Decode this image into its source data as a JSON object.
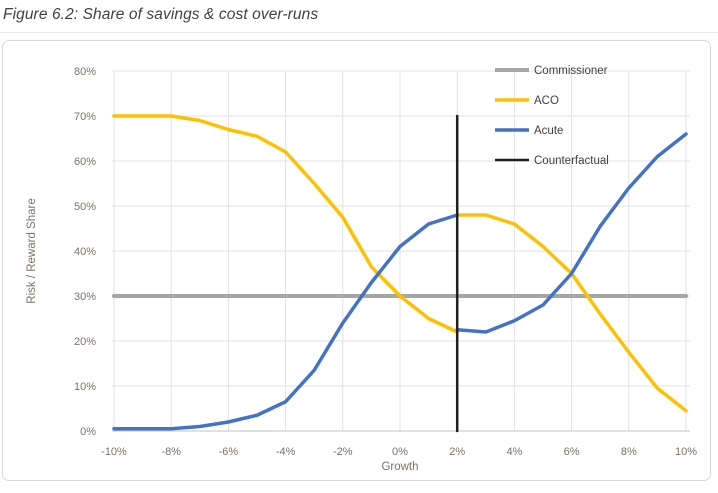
{
  "chart_data": {
    "type": "line",
    "title": "Figure 6.2: Share of savings & cost over-runs",
    "xlabel": "Growth",
    "ylabel": "Risk / Reward Share",
    "xlim": [
      -10,
      10
    ],
    "ylim": [
      0,
      80
    ],
    "x_tick_values": [
      -10,
      -8,
      -6,
      -4,
      -2,
      0,
      2,
      4,
      6,
      8,
      10
    ],
    "x_tick_labels": [
      "-10%",
      "-8%",
      "-6%",
      "-4%",
      "-2%",
      "0%",
      "2%",
      "4%",
      "6%",
      "8%",
      "10%"
    ],
    "y_tick_values": [
      0,
      10,
      20,
      30,
      40,
      50,
      60,
      70,
      80
    ],
    "y_tick_labels": [
      "0%",
      "10%",
      "20%",
      "30%",
      "40%",
      "50%",
      "60%",
      "70%",
      "80%"
    ],
    "grid": true,
    "legend_position": "top-right-inside",
    "note": "ACO and Acute series are discontinuous at the counterfactual growth rate of 2%",
    "series": [
      {
        "name": "Commissioner",
        "color": "#A6A6A6",
        "width": 4,
        "segments": [
          {
            "x": [
              -10,
              10
            ],
            "y": [
              30,
              30
            ]
          }
        ]
      },
      {
        "name": "ACO",
        "color": "#FFC000",
        "width": 3.5,
        "segments": [
          {
            "x": [
              -10,
              -9,
              -8,
              -7,
              -6,
              -5,
              -4,
              -3,
              -2,
              -1,
              0,
              1,
              2
            ],
            "y": [
              70,
              70,
              70,
              69,
              67,
              65.5,
              62,
              55,
              47.5,
              36.5,
              30,
              25,
              22
            ]
          },
          {
            "x": [
              2,
              3,
              4,
              5,
              6,
              7,
              8,
              9,
              10
            ],
            "y": [
              48,
              48,
              46,
              41,
              35,
              26,
              17.5,
              9.5,
              4.5
            ]
          }
        ]
      },
      {
        "name": "Acute",
        "color": "#4472C4",
        "width": 3.5,
        "segments": [
          {
            "x": [
              -10,
              -9,
              -8,
              -7,
              -6,
              -5,
              -4,
              -3,
              -2,
              -1,
              0,
              1,
              2
            ],
            "y": [
              0.5,
              0.5,
              0.5,
              1,
              2,
              3.5,
              6.5,
              13.5,
              24,
              33,
              41,
              46,
              48
            ]
          },
          {
            "x": [
              2,
              3,
              4,
              5,
              6,
              7,
              8,
              9,
              10
            ],
            "y": [
              22.5,
              22,
              24.5,
              28,
              35,
              45.5,
              54,
              61,
              66
            ]
          }
        ]
      },
      {
        "name": "Counterfactual",
        "color": "#1F1F1F",
        "width": 2.5,
        "segments": [
          {
            "x": [
              2,
              2
            ],
            "y": [
              0,
              70
            ]
          }
        ]
      }
    ]
  },
  "style": {
    "gridline_color": "#e2e2e2",
    "axis_line_color": "#c3c3c3",
    "tick_label_color": "#7b7268",
    "legend_text_color": "#3f3f3f",
    "frame_border_color": "#d9d9d9",
    "title_color": "#3f4245",
    "background": "#ffffff"
  }
}
